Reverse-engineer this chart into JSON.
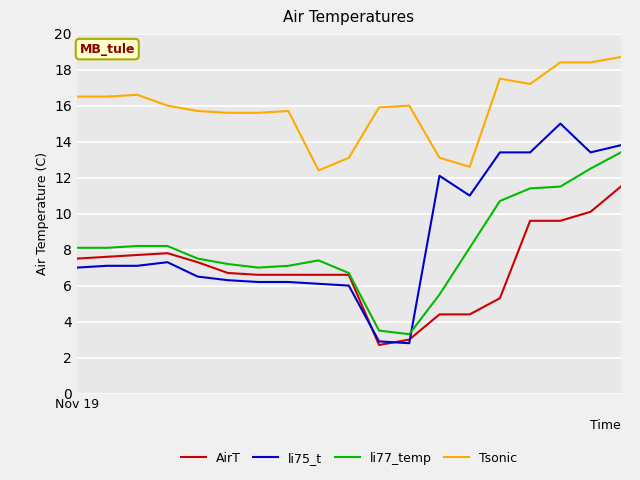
{
  "title": "Air Temperatures",
  "xlabel": "Time",
  "ylabel": "Air Temperature (C)",
  "ylim": [
    0,
    20
  ],
  "annotation": "MB_tule",
  "plot_bg_color": "#e8e8e8",
  "fig_bg_color": "#f0f0f0",
  "AirT": [
    7.5,
    7.6,
    7.7,
    7.8,
    7.3,
    6.7,
    6.6,
    6.6,
    6.6,
    6.6,
    2.7,
    3.0,
    4.4,
    4.4,
    5.3,
    9.6,
    9.6,
    10.1,
    11.5
  ],
  "li75_t": [
    7.0,
    7.1,
    7.1,
    7.3,
    6.5,
    6.3,
    6.2,
    6.2,
    6.1,
    6.0,
    2.9,
    2.8,
    12.1,
    11.0,
    13.4,
    13.4,
    15.0,
    13.4,
    13.8
  ],
  "li77_temp": [
    8.1,
    8.1,
    8.2,
    8.2,
    7.5,
    7.2,
    7.0,
    7.1,
    7.4,
    6.7,
    3.5,
    3.3,
    5.5,
    8.1,
    10.7,
    11.4,
    11.5,
    12.5,
    13.4
  ],
  "Tsonic": [
    16.5,
    16.5,
    16.6,
    16.0,
    15.7,
    15.6,
    15.6,
    15.7,
    12.4,
    13.1,
    15.9,
    16.0,
    13.1,
    12.6,
    17.5,
    17.2,
    18.4,
    18.4,
    18.7
  ],
  "AirT_color": "#cc0000",
  "li75_t_color": "#0000cc",
  "li77_temp_color": "#00bb00",
  "Tsonic_color": "#ffaa00",
  "xticklabel": "Nov 19",
  "legend_labels": [
    "AirT",
    "li75_t",
    "li77_temp",
    "Tsonic"
  ],
  "yticks": [
    0,
    2,
    4,
    6,
    8,
    10,
    12,
    14,
    16,
    18,
    20
  ],
  "grid_color": "#ffffff",
  "annotation_fg": "#8b0000",
  "annotation_bg": "#ffffcc",
  "annotation_edge": "#aaaa00"
}
